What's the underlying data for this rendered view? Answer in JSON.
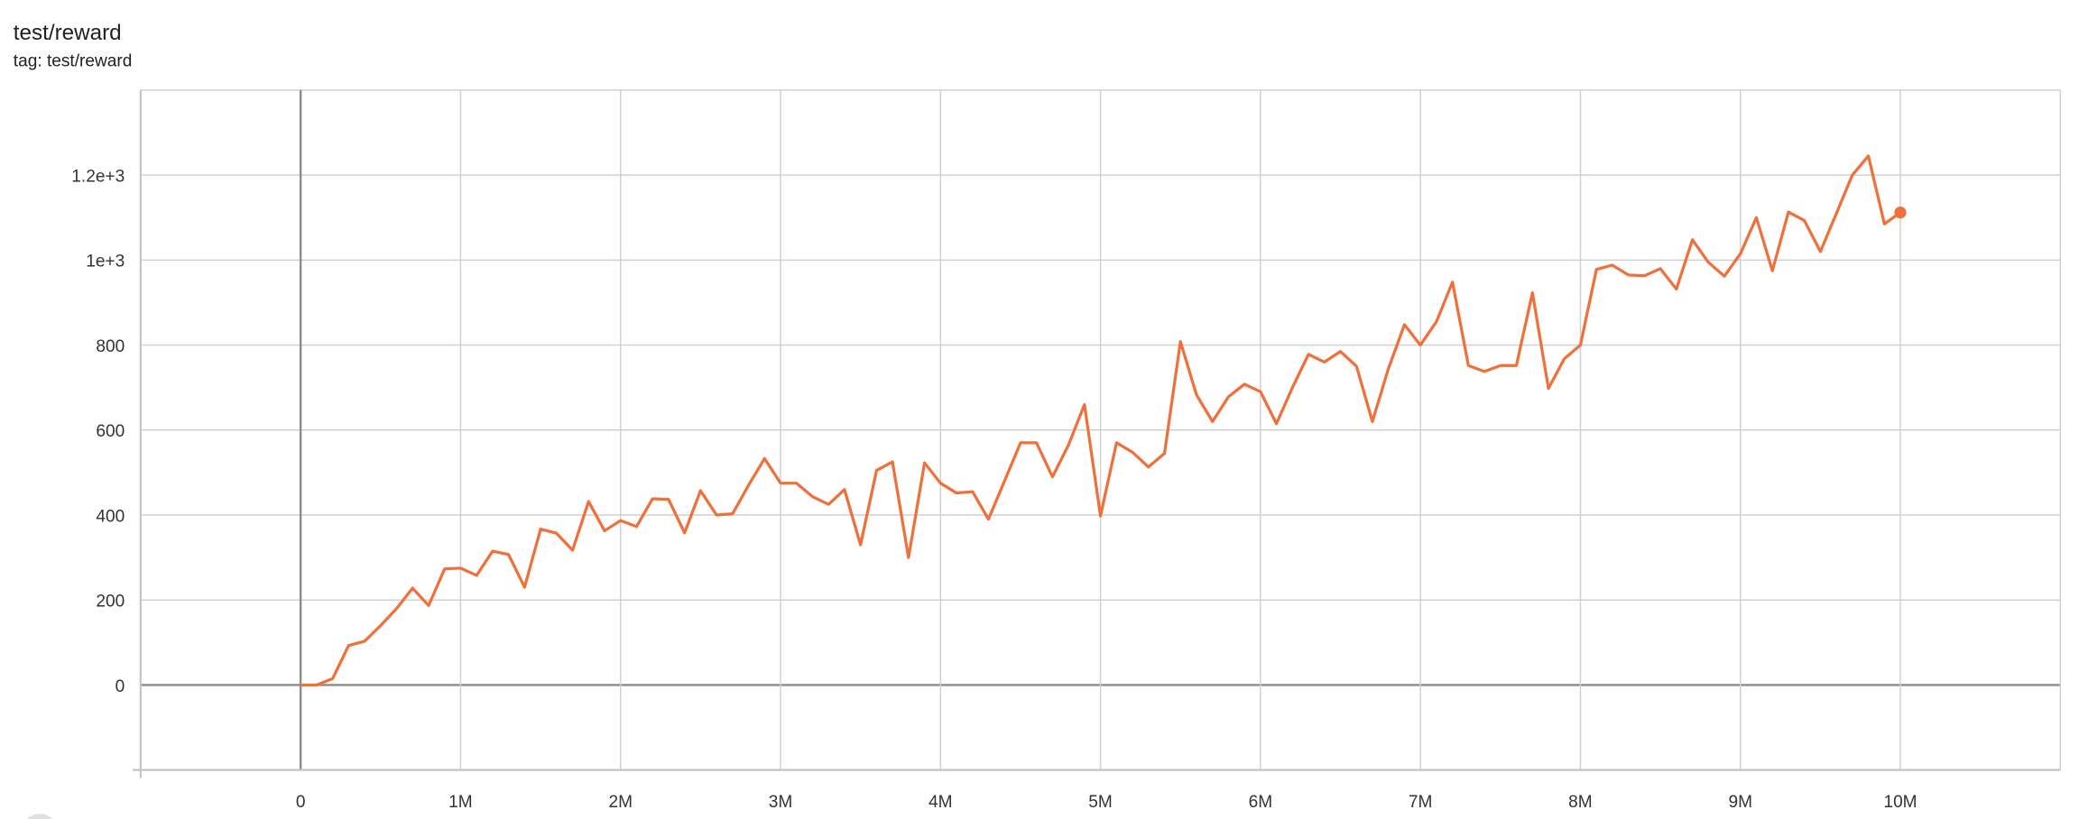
{
  "card": {
    "title": "test/reward",
    "subtitle": "tag: test/reward"
  },
  "colors": {
    "series": "#f0703c",
    "grid": "#d0d0d0",
    "zero_line": "#8a8a8a"
  },
  "chart_data": {
    "type": "line",
    "title": "test/reward",
    "xlabel": "",
    "ylabel": "",
    "xlim": [
      -1000000,
      11000000
    ],
    "ylim": [
      -200,
      1400
    ],
    "grid": true,
    "x_ticks": [
      0,
      1000000,
      2000000,
      3000000,
      4000000,
      5000000,
      6000000,
      7000000,
      8000000,
      9000000,
      10000000
    ],
    "x_tick_labels": [
      "0",
      "1M",
      "2M",
      "3M",
      "4M",
      "5M",
      "6M",
      "7M",
      "8M",
      "9M",
      "10M"
    ],
    "y_ticks": [
      0,
      200,
      400,
      600,
      800,
      1000,
      1200
    ],
    "y_tick_labels": [
      "0",
      "200",
      "400",
      "600",
      "800",
      "1e+3",
      "1.2e+3"
    ],
    "series": [
      {
        "color": "#f0703c",
        "x": [
          0,
          100000,
          200000,
          300000,
          400000,
          500000,
          600000,
          700000,
          800000,
          900000,
          1000000,
          1100000,
          1200000,
          1300000,
          1400000,
          1500000,
          1600000,
          1700000,
          1800000,
          1900000,
          2000000,
          2100000,
          2200000,
          2300000,
          2400000,
          2500000,
          2600000,
          2700000,
          2800000,
          2900000,
          3000000,
          3100000,
          3200000,
          3300000,
          3400000,
          3500000,
          3600000,
          3700000,
          3800000,
          3900000,
          4000000,
          4100000,
          4200000,
          4300000,
          4400000,
          4500000,
          4600000,
          4700000,
          4800000,
          4900000,
          5000000,
          5100000,
          5200000,
          5300000,
          5400000,
          5500000,
          5600000,
          5700000,
          5800000,
          5900000,
          6000000,
          6100000,
          6200000,
          6300000,
          6400000,
          6500000,
          6600000,
          6700000,
          6800000,
          6900000,
          7000000,
          7100000,
          7200000,
          7300000,
          7400000,
          7500000,
          7600000,
          7700000,
          7800000,
          7900000,
          8000000,
          8100000,
          8200000,
          8300000,
          8400000,
          8500000,
          8600000,
          8700000,
          8800000,
          8900000,
          9000000,
          9100000,
          9200000,
          9300000,
          9400000,
          9500000,
          9600000,
          9700000,
          9800000,
          9900000,
          10000000
        ],
        "y": [
          0,
          0,
          15,
          93,
          103,
          140,
          180,
          228,
          187,
          273,
          275,
          258,
          315,
          307,
          230,
          367,
          357,
          317,
          432,
          363,
          387,
          373,
          438,
          437,
          358,
          457,
          400,
          403,
          470,
          533,
          475,
          475,
          443,
          425,
          460,
          330,
          505,
          525,
          300,
          523,
          475,
          452,
          455,
          390,
          480,
          570,
          570,
          490,
          565,
          660,
          398,
          570,
          548,
          513,
          545,
          808,
          683,
          620,
          678,
          708,
          690,
          615,
          700,
          778,
          760,
          785,
          750,
          620,
          745,
          848,
          800,
          855,
          948,
          752,
          738,
          752,
          752,
          923,
          698,
          768,
          800,
          978,
          988,
          965,
          963,
          980,
          932,
          1048,
          995,
          962,
          1015,
          1100,
          975,
          1113,
          1093,
          1020,
          1110,
          1200,
          1245,
          1085,
          1112
        ]
      }
    ]
  }
}
